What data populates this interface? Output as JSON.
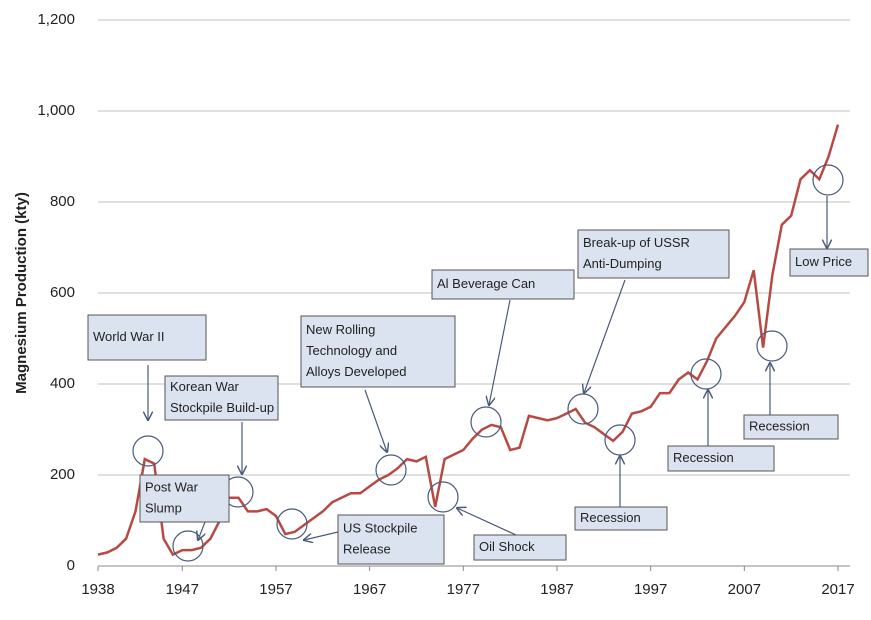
{
  "chart_data": {
    "type": "line",
    "y_label": "Magnesium Production (kty)",
    "x": [
      1938,
      1939,
      1940,
      1941,
      1942,
      1943,
      1944,
      1945,
      1946,
      1947,
      1948,
      1949,
      1950,
      1951,
      1952,
      1953,
      1954,
      1955,
      1956,
      1957,
      1958,
      1959,
      1960,
      1961,
      1962,
      1963,
      1964,
      1965,
      1966,
      1967,
      1968,
      1969,
      1970,
      1971,
      1972,
      1973,
      1974,
      1975,
      1976,
      1977,
      1978,
      1979,
      1980,
      1981,
      1982,
      1983,
      1984,
      1985,
      1986,
      1987,
      1988,
      1989,
      1990,
      1991,
      1992,
      1993,
      1994,
      1995,
      1996,
      1997,
      1998,
      1999,
      2000,
      2001,
      2002,
      2003,
      2004,
      2005,
      2006,
      2007,
      2008,
      2009,
      2010,
      2011,
      2012,
      2013,
      2014,
      2015,
      2016,
      2017
    ],
    "values": [
      25,
      30,
      40,
      60,
      120,
      235,
      225,
      60,
      25,
      35,
      35,
      40,
      60,
      100,
      150,
      150,
      120,
      120,
      125,
      110,
      70,
      75,
      90,
      105,
      120,
      140,
      150,
      160,
      160,
      175,
      190,
      200,
      215,
      235,
      230,
      240,
      130,
      235,
      245,
      255,
      280,
      300,
      310,
      305,
      255,
      260,
      330,
      325,
      320,
      325,
      335,
      345,
      315,
      305,
      290,
      275,
      295,
      335,
      340,
      350,
      380,
      380,
      410,
      425,
      410,
      450,
      500,
      525,
      550,
      580,
      650,
      480,
      640,
      750,
      770,
      850,
      870,
      850,
      900,
      970
    ],
    "color": "#b84a44",
    "xlim": [
      1938,
      2017
    ],
    "xticks": [
      1938,
      1947,
      1957,
      1967,
      1977,
      1987,
      1997,
      2007,
      2017
    ],
    "ylim": [
      0,
      1200
    ],
    "yticks": [
      0,
      200,
      400,
      600,
      800,
      {
        "value": 1000,
        "label": "1,000"
      },
      {
        "value": 1200,
        "label": "1,200"
      }
    ],
    "grid": true,
    "annotations": [
      [
        "World War II"
      ],
      [
        "Korean War",
        "Stockpile Build-up"
      ],
      [
        "Post War",
        "Slump"
      ],
      [
        "US Stockpile",
        "Release"
      ],
      [
        "New Rolling",
        "Technology and",
        "Alloys Developed"
      ],
      [
        "Oil Shock"
      ],
      [
        "Al Beverage Can"
      ],
      [
        "Break-up of USSR",
        "Anti-Dumping"
      ],
      [
        "Recession"
      ],
      [
        "Recession"
      ],
      [
        "Recession"
      ],
      [
        "Low Price"
      ]
    ]
  }
}
